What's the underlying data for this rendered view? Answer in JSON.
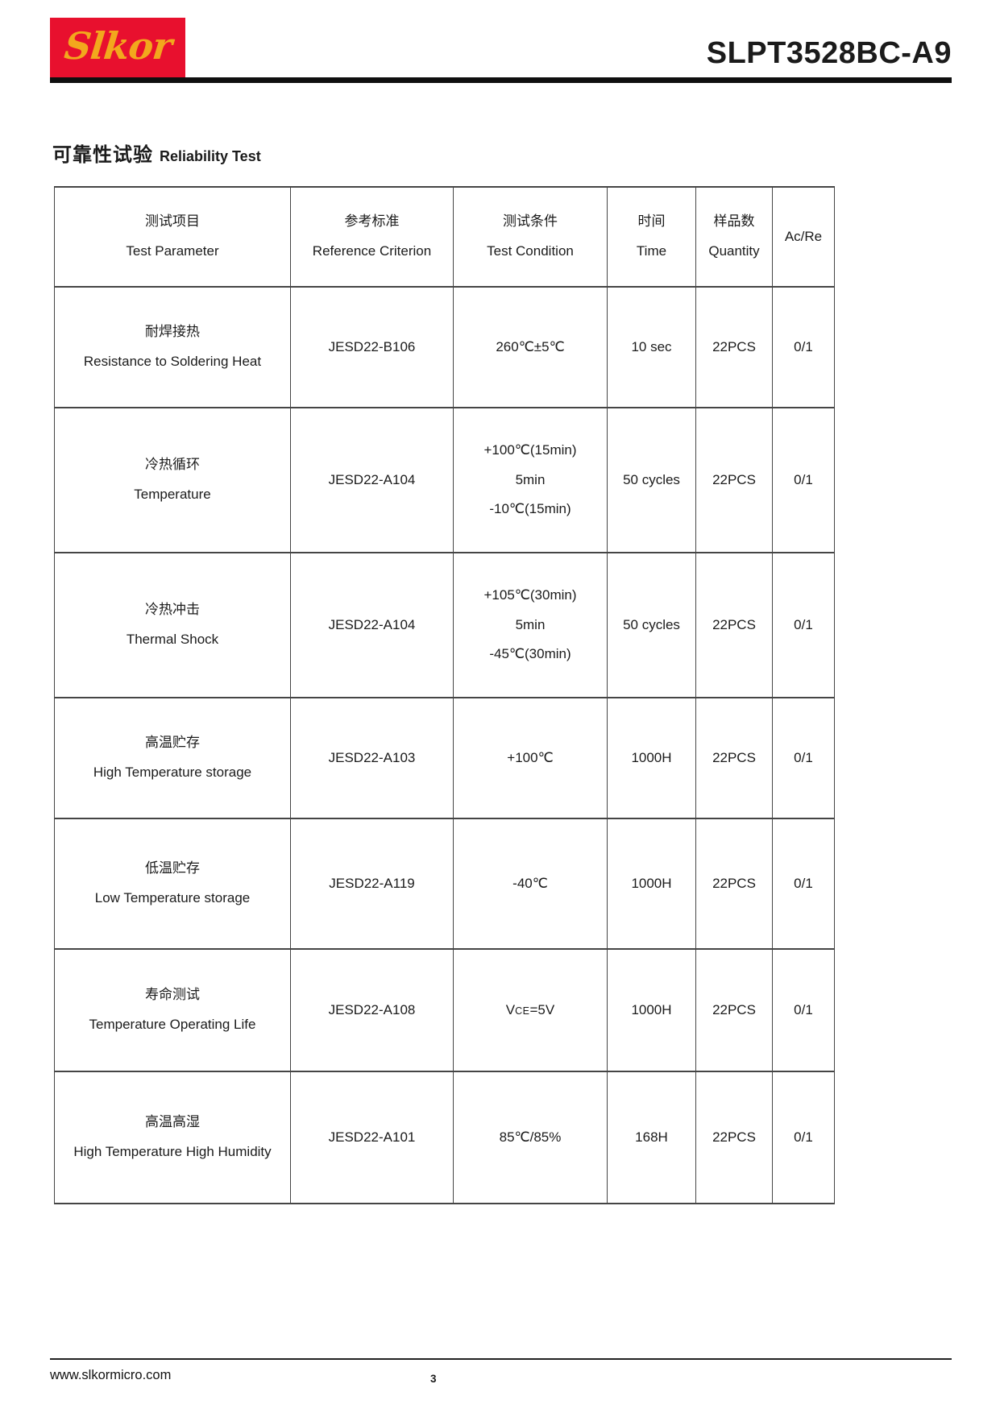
{
  "header": {
    "logo_text": "Slkor",
    "part_number": "SLPT3528BC-A9"
  },
  "section_title": {
    "zh": "可靠性试验",
    "en": "Reliability Test"
  },
  "table": {
    "header": {
      "c0": {
        "zh": "测试项目",
        "en": "Test Parameter"
      },
      "c1": {
        "zh": "参考标准",
        "en": "Reference Criterion"
      },
      "c2": {
        "zh": "测试条件",
        "en": "Test Condition"
      },
      "c3": {
        "zh": "时间",
        "en": "Time"
      },
      "c4": {
        "zh": "样品数",
        "en": "Quantity"
      },
      "c5": {
        "label": "Ac/Re"
      }
    },
    "rows": [
      {
        "param_zh": "耐焊接热",
        "param_en": "Resistance to Soldering Heat",
        "criterion": "JESD22-B106",
        "condition": [
          "260℃±5℃"
        ],
        "time": "10 sec",
        "quantity": "22PCS",
        "ac_re": "0/1"
      },
      {
        "param_zh": "冷热循环",
        "param_en": "Temperature",
        "criterion": "JESD22-A104",
        "condition": [
          "+100℃(15min)",
          "5min",
          "-10℃(15min)"
        ],
        "time": "50 cycles",
        "quantity": "22PCS",
        "ac_re": "0/1"
      },
      {
        "param_zh": "冷热冲击",
        "param_en": "Thermal Shock",
        "criterion": "JESD22-A104",
        "condition": [
          "+105℃(30min)",
          "5min",
          "-45℃(30min)"
        ],
        "time": "50 cycles",
        "quantity": "22PCS",
        "ac_re": "0/1"
      },
      {
        "param_zh": "高温贮存",
        "param_en": "High Temperature storage",
        "criterion": "JESD22-A103",
        "condition": [
          "+100℃"
        ],
        "time": "1000H",
        "quantity": "22PCS",
        "ac_re": "0/1"
      },
      {
        "param_zh": "低温贮存",
        "param_en": "Low Temperature storage",
        "criterion": "JESD22-A119",
        "condition": [
          "-40℃"
        ],
        "time": "1000H",
        "quantity": "22PCS",
        "ac_re": "0/1"
      },
      {
        "param_zh": "寿命测试",
        "param_en": "Temperature Operating Life",
        "criterion": "JESD22-A108",
        "condition_v": {
          "pre": "V",
          "sub": "CE",
          "post": "=5V"
        },
        "time": "1000H",
        "quantity": "22PCS",
        "ac_re": "0/1"
      },
      {
        "param_zh": "高温高湿",
        "param_en": "High Temperature High Humidity",
        "criterion": "JESD22-A101",
        "condition": [
          "85℃/85%"
        ],
        "time": "168H",
        "quantity": "22PCS",
        "ac_re": "0/1"
      }
    ]
  },
  "footer": {
    "website": "www.slkormicro.com",
    "page_number": "3"
  },
  "colors": {
    "logo_background": "#e8102e",
    "logo_text": "#f2a81d",
    "rule": "#0f0f0f",
    "table_border": "#454545",
    "text": "#1b1b1b"
  }
}
